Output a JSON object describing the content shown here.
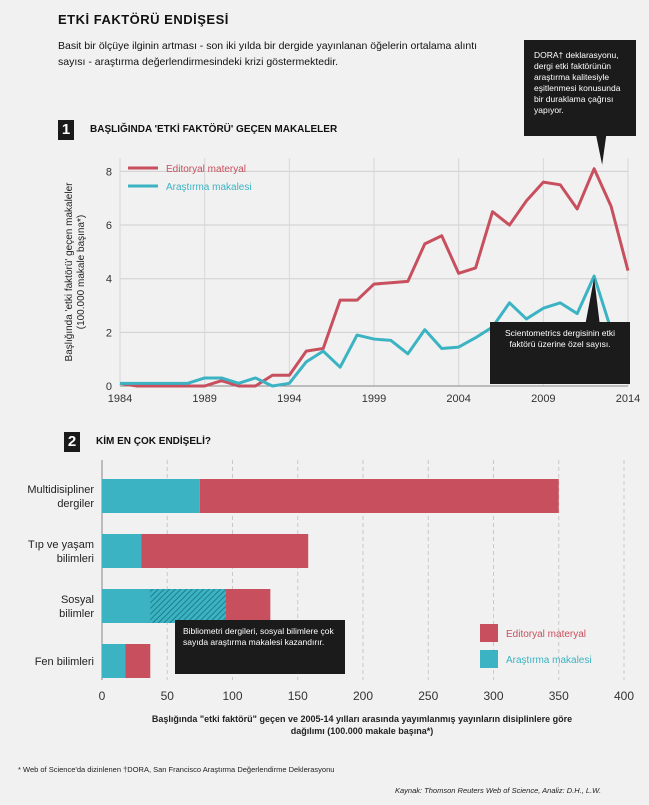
{
  "title": "ETKİ FAKTÖRÜ ENDİŞESİ",
  "intro": "Basit bir ölçüye ilginin artması - son iki yılda bir dergide yayınlanan öğelerin ortalama alıntı sayısı - araştırma değerlendirmesindeki krizi göstermektedir.",
  "dora_note": "DORA† deklarasyonu, dergi etki faktörünün araştırma kalitesiyle eşitlenmesi konusunda bir duraklama çağrısı yapıyor.",
  "scientometrics_note": "Scientometrics dergisinin etki faktörü üzerine özel sayısı.",
  "bibliometrics_note": "Bibliometri dergileri, sosyal bilimlere çok sayıda araştırma makalesi kazandırır.",
  "footnote": "* Web of Science'da dizinlenen †DORA, San Francisco Araştırma Değerlendirme Deklerasyonu",
  "source": "Kaynak: Thomson Reuters Web of Science, Analiz: D.H., L.W.",
  "colors": {
    "editorial": "#c8505e",
    "research": "#3bb3c3",
    "hatch_bg": "#3bb3c3",
    "hatch_line": "#1d7f8c"
  },
  "chart_data": [
    {
      "type": "line",
      "section_number": "1",
      "title": "BAŞLIĞINDA 'ETKİ FAKTÖRÜ' GEÇEN MAKALELER",
      "ylabel": "Başlığında 'etki faktörü' geçen makaleler (100.000 makale başına*)",
      "xlabel": "",
      "xlim": [
        1984,
        2014
      ],
      "ylim": [
        0,
        8.5
      ],
      "xticks": [
        1984,
        1989,
        1994,
        1999,
        2004,
        2009,
        2014
      ],
      "yticks": [
        0,
        2,
        4,
        6,
        8
      ],
      "grid": true,
      "legend": "top-left",
      "x": [
        1984,
        1985,
        1986,
        1987,
        1988,
        1989,
        1990,
        1991,
        1992,
        1993,
        1994,
        1995,
        1996,
        1997,
        1998,
        1999,
        2000,
        2001,
        2002,
        2003,
        2004,
        2005,
        2006,
        2007,
        2008,
        2009,
        2010,
        2011,
        2012,
        2013,
        2014
      ],
      "series": [
        {
          "name": "Editoryal materyal",
          "values": [
            0.1,
            0.0,
            0.0,
            0.0,
            0.0,
            0.0,
            0.2,
            0.0,
            0.0,
            0.4,
            0.4,
            1.3,
            1.4,
            3.2,
            3.2,
            3.8,
            3.85,
            3.9,
            5.3,
            5.6,
            4.2,
            4.4,
            6.5,
            6.0,
            6.9,
            7.6,
            7.5,
            6.6,
            8.1,
            6.7,
            4.3
          ]
        },
        {
          "name": "Araştırma makalesi",
          "values": [
            0.1,
            0.1,
            0.1,
            0.1,
            0.1,
            0.3,
            0.3,
            0.1,
            0.3,
            0.0,
            0.1,
            0.9,
            1.3,
            0.7,
            1.9,
            1.75,
            1.7,
            1.2,
            2.1,
            1.4,
            1.45,
            1.8,
            2.2,
            3.1,
            2.5,
            2.9,
            3.1,
            2.7,
            4.1,
            2.1,
            1.9
          ]
        }
      ]
    },
    {
      "type": "bar",
      "orientation": "horizontal",
      "stacked": true,
      "section_number": "2",
      "title": "KİM EN ÇOK ENDİŞELİ?",
      "xlabel": "Başlığında \"etki faktörü\" geçen ve 2005-14 yılları arasında yayımlanmış yayınların disiplinlere göre dağılımı (100.000 makale başına*)",
      "ylabel": "",
      "xlim": [
        0,
        400
      ],
      "xticks": [
        0,
        50,
        100,
        150,
        200,
        250,
        300,
        350,
        400
      ],
      "grid": true,
      "legend": "bottom-right",
      "categories": [
        "Multidisipliner dergiler",
        "Tıp ve yaşam bilimleri",
        "Sosyal bilimler",
        "Fen bilimleri"
      ],
      "series": [
        {
          "name": "Araştırma makalesi",
          "values": [
            75,
            30,
            95,
            18
          ]
        },
        {
          "name": "Editoryal materyal",
          "values": [
            275,
            128,
            34,
            19
          ]
        }
      ],
      "hatched_segment": {
        "category": "Sosyal bilimler",
        "from": 37,
        "to": 95
      }
    }
  ]
}
